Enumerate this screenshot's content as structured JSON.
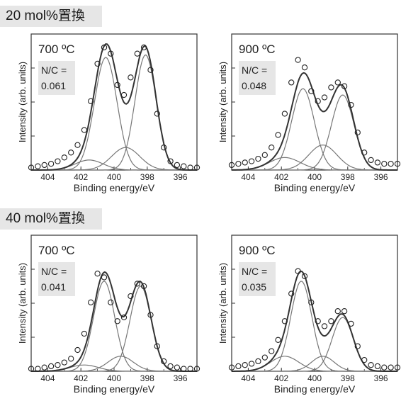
{
  "sections": [
    {
      "label": "20 mol%置換"
    },
    {
      "label": "40 mol%置換"
    }
  ],
  "chart_data": [
    {
      "type": "scatter",
      "temp": "700 ºC",
      "nc_label": "N/C =",
      "nc_value": "0.061",
      "xlabel": "Binding energy/eV",
      "ylabel": "Intensity (arb. units)",
      "xlim": [
        405,
        395
      ],
      "xticks": [
        404,
        402,
        400,
        398,
        396
      ],
      "x": [
        405.0,
        404.6,
        404.2,
        403.8,
        403.4,
        403.0,
        402.6,
        402.2,
        401.8,
        401.4,
        401.0,
        400.6,
        400.2,
        399.8,
        399.4,
        399.0,
        398.6,
        398.2,
        397.8,
        397.4,
        397.0,
        396.6,
        396.2,
        395.8,
        395.4,
        395.0
      ],
      "y": [
        0.02,
        0.03,
        0.04,
        0.05,
        0.07,
        0.1,
        0.14,
        0.2,
        0.32,
        0.55,
        0.85,
        0.98,
        0.93,
        0.68,
        0.6,
        0.74,
        0.93,
        0.98,
        0.8,
        0.45,
        0.18,
        0.07,
        0.04,
        0.03,
        0.02,
        0.02
      ],
      "series": [
        {
          "center": 400.5,
          "height": 0.9,
          "fwhm": 1.6
        },
        {
          "center": 398.1,
          "height": 0.92,
          "fwhm": 1.5
        },
        {
          "center": 399.3,
          "height": 0.18,
          "fwhm": 2.0
        },
        {
          "center": 401.5,
          "height": 0.08,
          "fwhm": 2.0
        }
      ]
    },
    {
      "type": "scatter",
      "temp": "900 ºC",
      "nc_label": "N/C =",
      "nc_value": "0.048",
      "xlabel": "Binding energy/eV",
      "ylabel": "Intensity (arb. units)",
      "xlim": [
        405,
        395
      ],
      "xticks": [
        404,
        402,
        400,
        398,
        396
      ],
      "x": [
        405.0,
        404.6,
        404.2,
        403.8,
        403.4,
        403.0,
        402.6,
        402.2,
        401.8,
        401.4,
        401.0,
        400.6,
        400.2,
        399.8,
        399.4,
        399.0,
        398.6,
        398.2,
        397.8,
        397.4,
        397.0,
        396.6,
        396.2,
        395.8,
        395.4,
        395.0
      ],
      "y": [
        0.04,
        0.05,
        0.06,
        0.07,
        0.09,
        0.12,
        0.18,
        0.28,
        0.45,
        0.7,
        0.88,
        0.82,
        0.63,
        0.55,
        0.58,
        0.66,
        0.7,
        0.67,
        0.52,
        0.3,
        0.14,
        0.08,
        0.06,
        0.05,
        0.05,
        0.05
      ],
      "series": [
        {
          "center": 400.7,
          "height": 0.65,
          "fwhm": 1.6
        },
        {
          "center": 398.3,
          "height": 0.6,
          "fwhm": 1.6
        },
        {
          "center": 399.5,
          "height": 0.2,
          "fwhm": 2.0
        },
        {
          "center": 401.8,
          "height": 0.1,
          "fwhm": 2.2
        }
      ]
    },
    {
      "type": "scatter",
      "temp": "700 ºC",
      "nc_label": "N/C =",
      "nc_value": "0.041",
      "xlabel": "Binding energy/eV",
      "ylabel": "Intensity (arb. units)",
      "xlim": [
        405,
        395
      ],
      "xticks": [
        404,
        402,
        400,
        398,
        396
      ],
      "x": [
        405.0,
        404.6,
        404.2,
        403.8,
        403.4,
        403.0,
        402.6,
        402.2,
        401.8,
        401.4,
        401.0,
        400.6,
        400.2,
        399.8,
        399.4,
        399.0,
        398.6,
        398.2,
        397.8,
        397.4,
        397.0,
        396.6,
        396.2,
        395.8,
        395.4,
        395.0
      ],
      "y": [
        0.02,
        0.02,
        0.03,
        0.04,
        0.05,
        0.07,
        0.1,
        0.17,
        0.3,
        0.55,
        0.78,
        0.75,
        0.55,
        0.4,
        0.43,
        0.6,
        0.7,
        0.68,
        0.45,
        0.2,
        0.08,
        0.04,
        0.03,
        0.02,
        0.02,
        0.02
      ],
      "series": [
        {
          "center": 400.6,
          "height": 0.72,
          "fwhm": 1.5
        },
        {
          "center": 398.4,
          "height": 0.68,
          "fwhm": 1.5
        },
        {
          "center": 399.6,
          "height": 0.12,
          "fwhm": 1.8
        },
        {
          "center": 401.8,
          "height": 0.05,
          "fwhm": 2.0
        }
      ]
    },
    {
      "type": "scatter",
      "temp": "900 ºC",
      "nc_label": "N/C =",
      "nc_value": "0.035",
      "xlabel": "Binding energy/eV",
      "ylabel": "Intensity (arb. units)",
      "xlim": [
        405,
        395
      ],
      "xticks": [
        404,
        402,
        400,
        398,
        396
      ],
      "x": [
        405.0,
        404.6,
        404.2,
        403.8,
        403.4,
        403.0,
        402.6,
        402.2,
        401.8,
        401.4,
        401.0,
        400.6,
        400.2,
        399.8,
        399.4,
        399.0,
        398.6,
        398.2,
        397.8,
        397.4,
        397.0,
        396.6,
        396.2,
        395.8,
        395.4,
        395.0
      ],
      "y": [
        0.03,
        0.04,
        0.05,
        0.06,
        0.08,
        0.11,
        0.16,
        0.25,
        0.4,
        0.62,
        0.8,
        0.76,
        0.55,
        0.4,
        0.36,
        0.4,
        0.48,
        0.48,
        0.38,
        0.2,
        0.09,
        0.05,
        0.04,
        0.03,
        0.03,
        0.03
      ],
      "series": [
        {
          "center": 400.8,
          "height": 0.72,
          "fwhm": 1.5
        },
        {
          "center": 398.3,
          "height": 0.43,
          "fwhm": 1.5
        },
        {
          "center": 399.5,
          "height": 0.12,
          "fwhm": 1.6
        },
        {
          "center": 401.8,
          "height": 0.12,
          "fwhm": 2.0
        }
      ]
    }
  ]
}
